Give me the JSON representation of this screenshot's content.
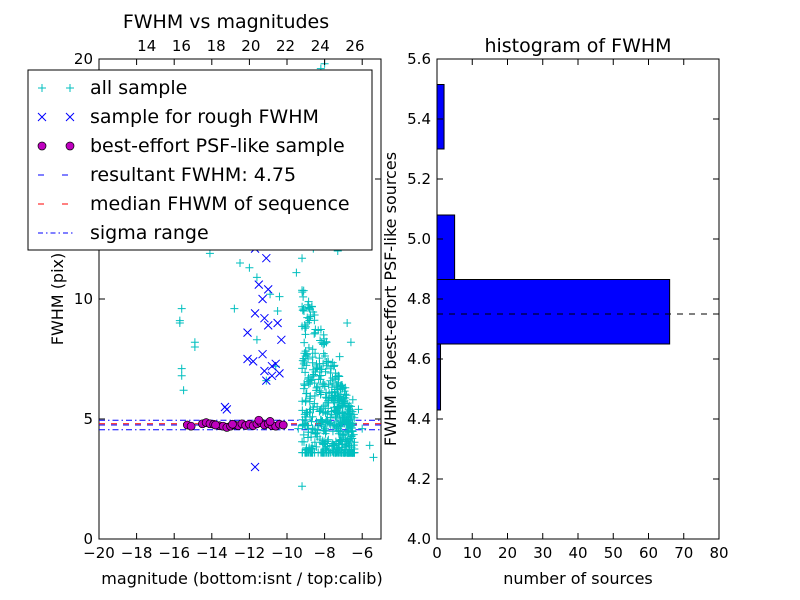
{
  "chart_data": [
    {
      "type": "scatter",
      "title": "FWHM vs magnitudes",
      "xlabel": "magnitude (bottom:isnt / top:calib)",
      "ylabel": "FWHM (pix)",
      "xlim": [
        -20,
        -5
      ],
      "ylim": [
        0,
        20
      ],
      "xticks": [
        "−20",
        "−18",
        "−16",
        "−14",
        "−12",
        "−10",
        "−8",
        "−6"
      ],
      "yticks": [
        "0",
        "5",
        "10",
        "15",
        "20"
      ],
      "top_axis": {
        "xlim": [
          11.25,
          27.5
        ],
        "ticks": [
          "14",
          "16",
          "18",
          "20",
          "22",
          "24",
          "26"
        ]
      },
      "legend": {
        "placement": "upper-left",
        "entries": [
          {
            "label": "all sample",
            "marker": "plus",
            "color": "#00bfbf"
          },
          {
            "label": "sample for rough FWHM",
            "marker": "x",
            "color": "#0000ff"
          },
          {
            "label": "best-effort PSF-like sample",
            "marker": "circle",
            "color": "#bf00bf"
          },
          {
            "label": "resultant FWHM: 4.75",
            "marker": "dash",
            "color": "#0000ff"
          },
          {
            "label": "median FHWM of sequence",
            "marker": "dash",
            "color": "#ff0000"
          },
          {
            "label": "sigma range",
            "marker": "dashdot",
            "color": "#0000ff"
          }
        ]
      },
      "hlines": {
        "resultant_fwhm": 4.75,
        "median_fwhm": 4.8,
        "sigma_range": [
          4.55,
          4.95
        ]
      },
      "series": [
        {
          "name": "all sample",
          "points": [
            [
              -15.6,
              9.6
            ],
            [
              -15.7,
              9.1
            ],
            [
              -15.7,
              9.0
            ],
            [
              -15.6,
              7.1
            ],
            [
              -15.6,
              6.8
            ],
            [
              -15.5,
              6.2
            ],
            [
              -14.9,
              8.2
            ],
            [
              -14.9,
              8.0
            ],
            [
              -14.1,
              11.9
            ],
            [
              -13.0,
              12.3
            ],
            [
              -12.5,
              11.5
            ],
            [
              -12.0,
              11.3
            ],
            [
              -12.8,
              9.6
            ],
            [
              -11.6,
              8.3
            ],
            [
              -11.1,
              6.6
            ],
            [
              -11.6,
              10.9
            ],
            [
              -10.4,
              10.1
            ],
            [
              -10.9,
              10.2
            ],
            [
              -10.5,
              9.5
            ],
            [
              -10.6,
              7.2
            ],
            [
              -11.2,
              12.9
            ],
            [
              -10.5,
              12.5
            ],
            [
              -9.4,
              4.6
            ],
            [
              -9.2,
              2.2
            ],
            [
              -8.1,
              4.1
            ],
            [
              -7.9,
              3.7
            ],
            [
              -7.5,
              3.9
            ],
            [
              -6.7,
              3.9
            ],
            [
              -5.4,
              3.4
            ],
            [
              -5.6,
              3.9
            ],
            [
              -5.0,
              3.9
            ],
            [
              -6.0,
              4.6
            ],
            [
              -7.0,
              4.3
            ],
            [
              -6.8,
              9.0
            ],
            [
              -6.6,
              8.2
            ],
            [
              -7.2,
              7.6
            ],
            [
              -6.9,
              6.3
            ],
            [
              -6.5,
              5.8
            ],
            [
              -6.2,
              5.4
            ],
            [
              -7.6,
              13.6
            ],
            [
              -7.3,
              12.0
            ],
            [
              -8.6,
              12.1
            ],
            [
              -9.2,
              11.7
            ],
            [
              -9.5,
              11.1
            ],
            [
              -8.2,
              19.6
            ],
            [
              -8.0,
              19.8
            ],
            [
              -8.9,
              18.6
            ],
            [
              -7.4,
              18.1
            ],
            [
              -6.6,
              18.6
            ]
          ]
        },
        {
          "name": "sample for rough FWHM",
          "points": [
            [
              -12.1,
              12.9
            ],
            [
              -12.0,
              12.3
            ],
            [
              -11.7,
              12.1
            ],
            [
              -11.1,
              11.7
            ],
            [
              -11.5,
              10.6
            ],
            [
              -11.0,
              10.4
            ],
            [
              -11.3,
              10.0
            ],
            [
              -11.7,
              9.4
            ],
            [
              -12.1,
              8.6
            ],
            [
              -11.2,
              9.2
            ],
            [
              -11.0,
              8.9
            ],
            [
              -10.5,
              9.0
            ],
            [
              -10.3,
              8.3
            ],
            [
              -10.6,
              7.3
            ],
            [
              -10.8,
              6.8
            ],
            [
              -11.1,
              6.6
            ],
            [
              -10.4,
              6.9
            ],
            [
              -11.3,
              7.7
            ],
            [
              -11.8,
              7.4
            ],
            [
              -12.1,
              7.5
            ],
            [
              -11.2,
              7.0
            ],
            [
              -10.8,
              7.2
            ],
            [
              -13.3,
              5.5
            ],
            [
              -13.2,
              5.4
            ],
            [
              -11.7,
              3.0
            ],
            [
              -10.6,
              4.8
            ]
          ]
        },
        {
          "name": "best-effort PSF-like sample",
          "points": [
            [
              -15.3,
              4.75
            ],
            [
              -15.1,
              4.7
            ],
            [
              -14.5,
              4.8
            ],
            [
              -14.3,
              4.85
            ],
            [
              -14.1,
              4.8
            ],
            [
              -13.9,
              4.78
            ],
            [
              -13.6,
              4.72
            ],
            [
              -13.4,
              4.7
            ],
            [
              -13.2,
              4.65
            ],
            [
              -13.0,
              4.7
            ],
            [
              -12.8,
              4.75
            ],
            [
              -12.6,
              4.72
            ],
            [
              -12.4,
              4.8
            ],
            [
              -12.2,
              4.73
            ],
            [
              -12.0,
              4.78
            ],
            [
              -11.8,
              4.72
            ],
            [
              -11.6,
              4.8
            ],
            [
              -11.4,
              4.85
            ],
            [
              -11.2,
              4.75
            ],
            [
              -11.0,
              4.8
            ],
            [
              -10.8,
              4.72
            ],
            [
              -10.6,
              4.7
            ],
            [
              -10.4,
              4.78
            ],
            [
              -10.2,
              4.75
            ],
            [
              -11.5,
              4.95
            ],
            [
              -10.9,
              4.9
            ],
            [
              -12.9,
              4.78
            ],
            [
              -13.8,
              4.75
            ]
          ]
        }
      ]
    },
    {
      "type": "bar",
      "orientation": "horizontal",
      "title": "histogram of FWHM",
      "xlabel": "number of sources",
      "ylabel": "FWHM of best-effort PSF-like sources",
      "xlim": [
        0,
        80
      ],
      "ylim": [
        4.0,
        5.6
      ],
      "xticks": [
        "0",
        "10",
        "20",
        "30",
        "40",
        "50",
        "60",
        "70",
        "80"
      ],
      "yticks": [
        "4.0",
        "4.2",
        "4.4",
        "4.6",
        "4.8",
        "5.0",
        "5.2",
        "5.4",
        "5.6"
      ],
      "color": "#0000ff",
      "bins": [
        {
          "y0": 4.43,
          "y1": 4.65,
          "value": 1
        },
        {
          "y0": 4.65,
          "y1": 4.865,
          "value": 66
        },
        {
          "y0": 4.865,
          "y1": 5.08,
          "value": 5
        },
        {
          "y0": 5.3,
          "y1": 5.515,
          "value": 2
        }
      ],
      "hline": 4.75
    }
  ]
}
